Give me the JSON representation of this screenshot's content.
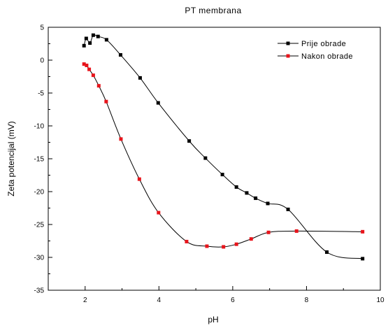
{
  "chart_data": {
    "type": "line",
    "title": "PT membrana",
    "xlabel": "pH",
    "ylabel": "Zeta potencijal (mV)",
    "xlim": [
      1,
      10
    ],
    "ylim": [
      -35,
      5
    ],
    "x_ticks": [
      2,
      4,
      6,
      8,
      10
    ],
    "y_ticks": [
      5,
      0,
      -5,
      -10,
      -15,
      -20,
      -25,
      -30,
      -35
    ],
    "legend_position": "top-right",
    "grid": false,
    "series": [
      {
        "name": "Prije obrade",
        "color": "#000000",
        "marker": "square",
        "points": [
          {
            "x": 1.97,
            "y": 2.2
          },
          {
            "x": 2.03,
            "y": 3.3
          },
          {
            "x": 2.13,
            "y": 2.6
          },
          {
            "x": 2.22,
            "y": 3.8
          },
          {
            "x": 2.35,
            "y": 3.6
          },
          {
            "x": 2.58,
            "y": 3.1
          },
          {
            "x": 2.96,
            "y": 0.8
          },
          {
            "x": 3.49,
            "y": -2.7
          },
          {
            "x": 3.98,
            "y": -6.5
          },
          {
            "x": 4.82,
            "y": -12.3
          },
          {
            "x": 5.26,
            "y": -14.9
          },
          {
            "x": 5.72,
            "y": -17.4
          },
          {
            "x": 6.1,
            "y": -19.3
          },
          {
            "x": 6.38,
            "y": -20.2
          },
          {
            "x": 6.62,
            "y": -21.0
          },
          {
            "x": 6.95,
            "y": -21.8
          },
          {
            "x": 7.5,
            "y": -22.7
          },
          {
            "x": 8.55,
            "y": -29.2
          },
          {
            "x": 9.52,
            "y": -30.2
          }
        ]
      },
      {
        "name": "Nakon obrade",
        "color": "#e8141b",
        "marker": "square",
        "points": [
          {
            "x": 1.97,
            "y": -0.6
          },
          {
            "x": 2.04,
            "y": -0.8
          },
          {
            "x": 2.11,
            "y": -1.4
          },
          {
            "x": 2.22,
            "y": -2.3
          },
          {
            "x": 2.37,
            "y": -3.9
          },
          {
            "x": 2.57,
            "y": -6.3
          },
          {
            "x": 2.97,
            "y": -12.0
          },
          {
            "x": 3.47,
            "y": -18.1
          },
          {
            "x": 3.99,
            "y": -23.2
          },
          {
            "x": 4.75,
            "y": -27.6
          },
          {
            "x": 5.3,
            "y": -28.3
          },
          {
            "x": 5.75,
            "y": -28.4
          },
          {
            "x": 6.1,
            "y": -28.0
          },
          {
            "x": 6.5,
            "y": -27.2
          },
          {
            "x": 6.97,
            "y": -26.2
          },
          {
            "x": 7.73,
            "y": -26.0
          },
          {
            "x": 9.52,
            "y": -26.1
          }
        ]
      }
    ]
  }
}
